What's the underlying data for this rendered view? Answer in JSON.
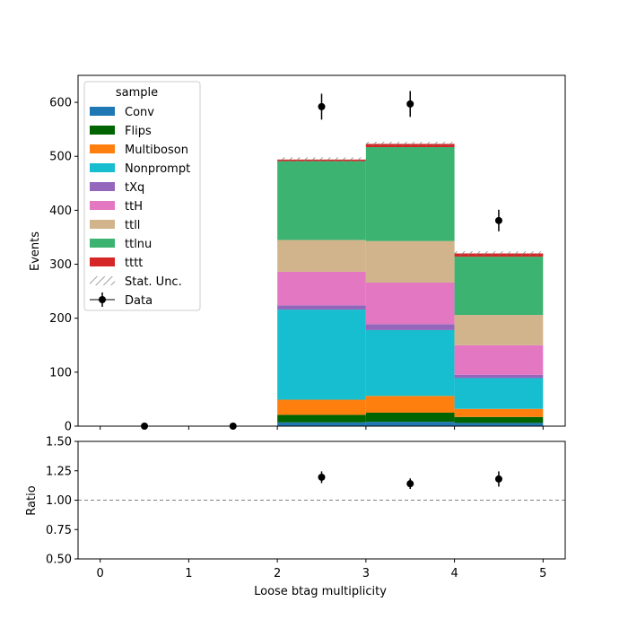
{
  "chart_data": {
    "type": "bar",
    "stacked": true,
    "xlabel": "Loose btag multiplicity",
    "xlim": [
      -0.25,
      5.25
    ],
    "xticks": [
      "0",
      "1",
      "2",
      "3",
      "4",
      "5"
    ],
    "bins": [
      [
        2,
        3
      ],
      [
        3,
        4
      ],
      [
        4,
        5
      ]
    ],
    "main": {
      "ylabel": "Events",
      "ylim": [
        0,
        650
      ],
      "yticks": [
        "0",
        "100",
        "200",
        "300",
        "400",
        "500",
        "600"
      ],
      "series": [
        {
          "name": "Conv",
          "color": "#1f77b4",
          "values": [
            7,
            8,
            6
          ]
        },
        {
          "name": "Flips",
          "color": "#006400",
          "values": [
            14,
            17,
            11
          ]
        },
        {
          "name": "Multiboson",
          "color": "#ff7f0e",
          "values": [
            28,
            31,
            15
          ]
        },
        {
          "name": "Nonprompt",
          "color": "#17becf",
          "values": [
            167,
            122,
            57
          ]
        },
        {
          "name": "tXq",
          "color": "#9467bd",
          "values": [
            8,
            11,
            6
          ]
        },
        {
          "name": "ttH",
          "color": "#e377c2",
          "values": [
            62,
            77,
            55
          ]
        },
        {
          "name": "ttll",
          "color": "#d2b48c",
          "values": [
            59,
            77,
            56
          ]
        },
        {
          "name": "ttlnu",
          "color": "#3cb371",
          "values": [
            146,
            174,
            108
          ]
        },
        {
          "name": "tttt",
          "color": "#d62728",
          "values": [
            3,
            6,
            6
          ]
        }
      ],
      "stat_unc": {
        "label": "Stat. Unc.",
        "halfwidth": [
          4,
          4,
          4
        ]
      },
      "data": {
        "label": "Data",
        "x": [
          0.5,
          1.5,
          2.5,
          3.5,
          4.5
        ],
        "y": [
          0,
          0,
          592,
          597,
          381
        ],
        "yerr": [
          0,
          0,
          24,
          24,
          20
        ]
      },
      "legend": {
        "title": "sample",
        "location": "upper left"
      }
    },
    "ratio": {
      "ylabel": "Ratio",
      "ylim": [
        0.5,
        1.5
      ],
      "yticks": [
        "0.50",
        "0.75",
        "1.00",
        "1.25",
        "1.50"
      ],
      "reference": 1.0,
      "x": [
        2.5,
        3.5,
        4.5
      ],
      "y": [
        1.195,
        1.14,
        1.18
      ],
      "yerr": [
        0.05,
        0.045,
        0.065
      ]
    }
  }
}
